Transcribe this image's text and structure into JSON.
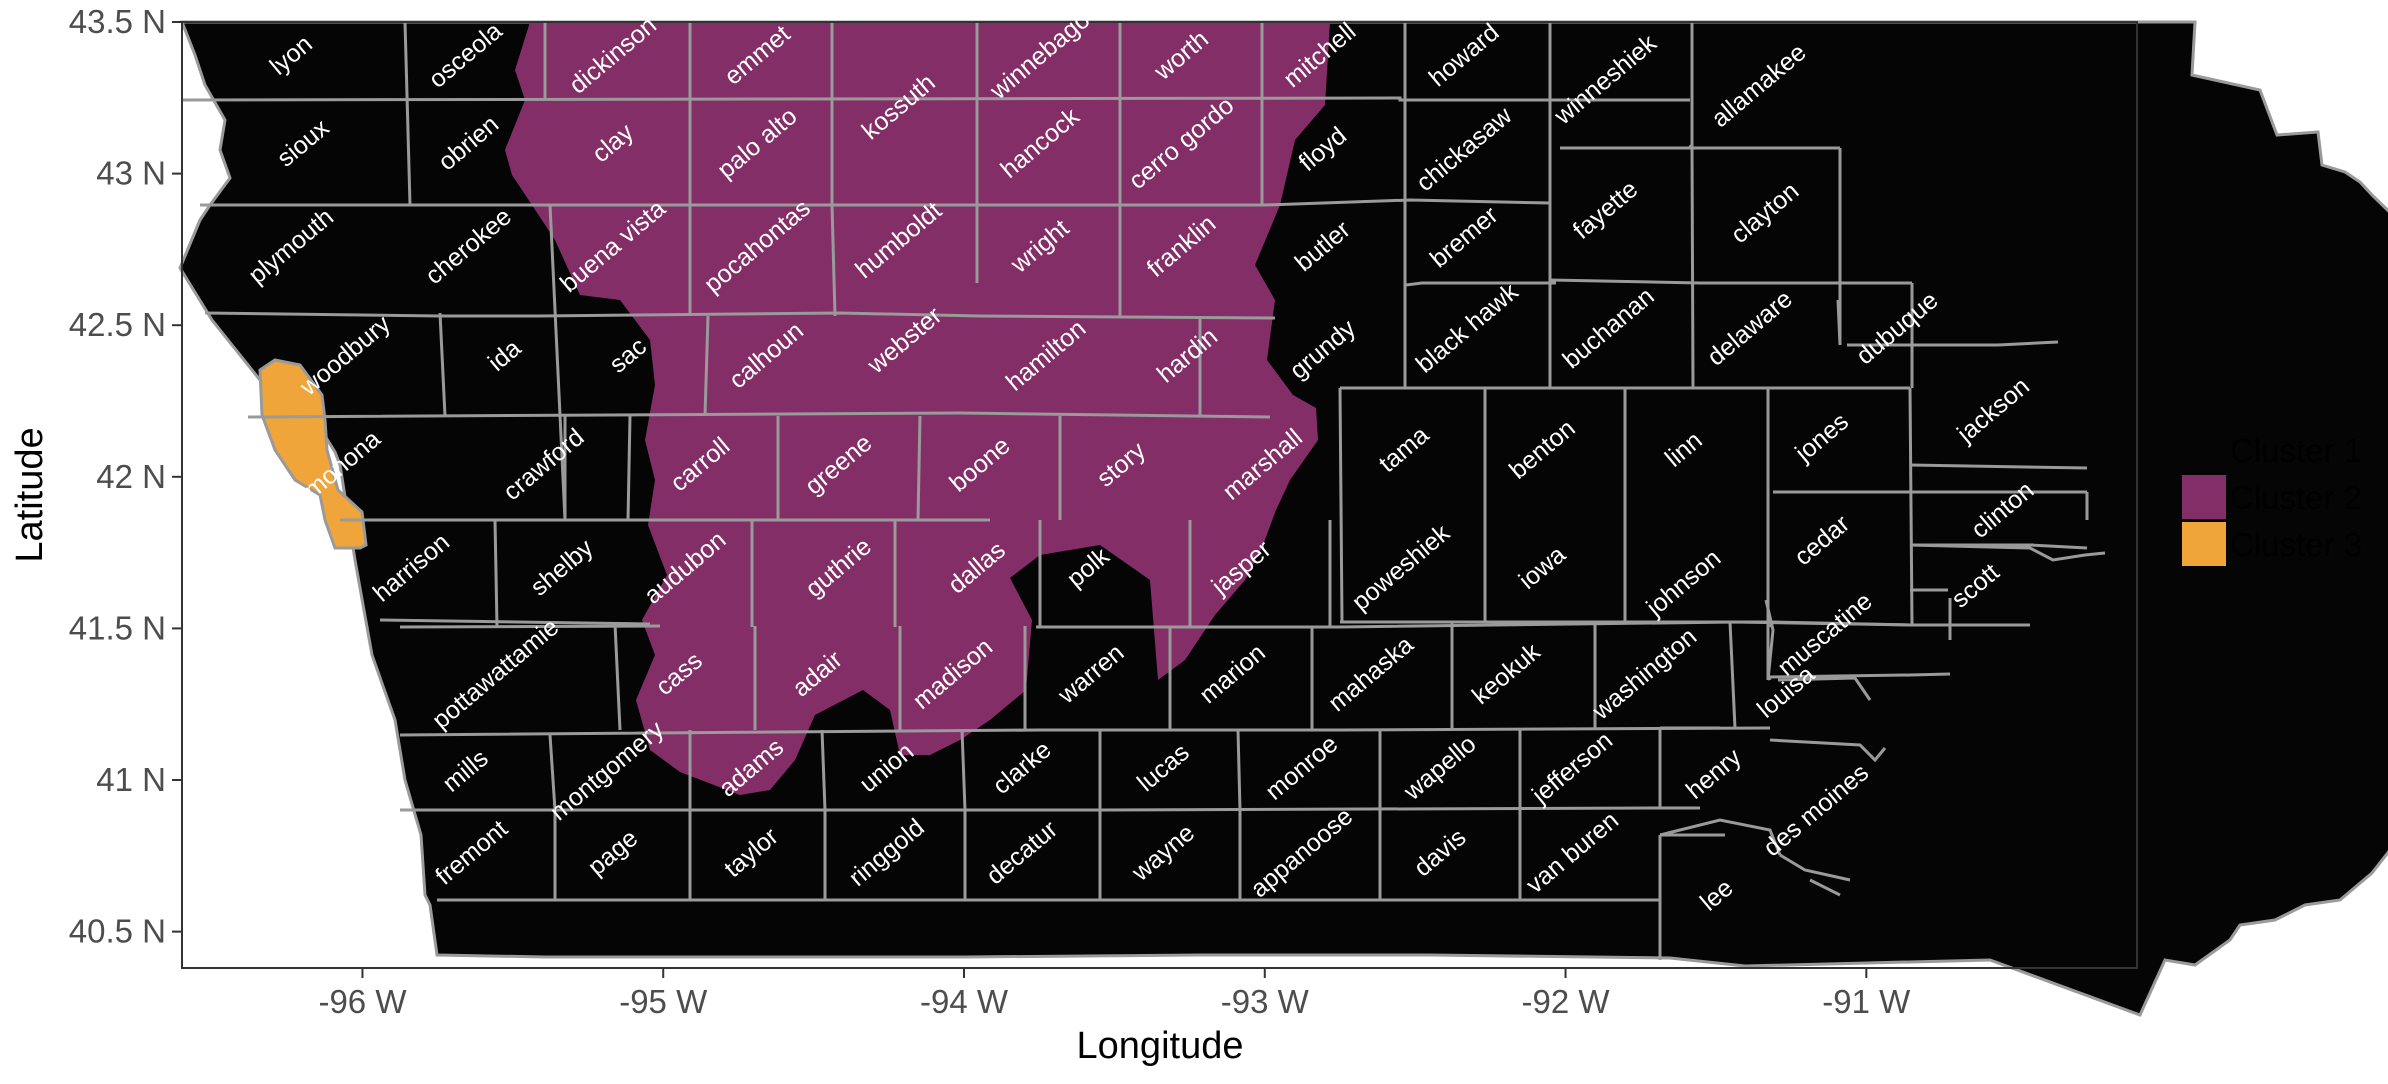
{
  "chart_data": {
    "type": "choropleth",
    "region": "Iowa counties",
    "xlabel": "Longitude",
    "ylabel": "Latitude",
    "xlim": [
      -96.6,
      -90.1
    ],
    "ylim": [
      40.38,
      43.5
    ],
    "x_ticks": [
      {
        "value": -96,
        "label": "-96 W"
      },
      {
        "value": -95,
        "label": "-95 W"
      },
      {
        "value": -94,
        "label": "-94 W"
      },
      {
        "value": -93,
        "label": "-93 W"
      },
      {
        "value": -92,
        "label": "-92 W"
      },
      {
        "value": -91,
        "label": "-91 W"
      }
    ],
    "y_ticks": [
      {
        "value": 43.5,
        "label": "43.5 N"
      },
      {
        "value": 43,
        "label": "43 N"
      },
      {
        "value": 42.5,
        "label": "42.5 N"
      },
      {
        "value": 42,
        "label": "42 N"
      },
      {
        "value": 41.5,
        "label": "41.5 N"
      },
      {
        "value": 41,
        "label": "41 N"
      },
      {
        "value": 40.5,
        "label": "40.5 N"
      }
    ],
    "grid": false,
    "legend_position": "right",
    "legend": [
      {
        "name": "Cluster 1",
        "color": "#050505"
      },
      {
        "name": "Cluster 2",
        "color": "#842e68"
      },
      {
        "name": "Cluster 3",
        "color": "#f0a53a"
      }
    ],
    "counties": [
      {
        "name": "lyon",
        "cluster": 1,
        "lon": -96.22,
        "lat": 43.37
      },
      {
        "name": "osceola",
        "cluster": 1,
        "lon": -95.64,
        "lat": 43.37
      },
      {
        "name": "dickinson",
        "cluster": 2,
        "lon": -95.15,
        "lat": 43.37
      },
      {
        "name": "emmet",
        "cluster": 2,
        "lon": -94.67,
        "lat": 43.37
      },
      {
        "name": "kossuth",
        "cluster": 2,
        "lon": -94.2,
        "lat": 43.2
      },
      {
        "name": "winnebago",
        "cluster": 2,
        "lon": -93.73,
        "lat": 43.37
      },
      {
        "name": "worth",
        "cluster": 2,
        "lon": -93.26,
        "lat": 43.37
      },
      {
        "name": "mitchell",
        "cluster": 2,
        "lon": -92.8,
        "lat": 43.37
      },
      {
        "name": "howard",
        "cluster": 1,
        "lon": -92.32,
        "lat": 43.37
      },
      {
        "name": "winneshiek",
        "cluster": 1,
        "lon": -91.85,
        "lat": 43.29
      },
      {
        "name": "allamakee",
        "cluster": 1,
        "lon": -91.34,
        "lat": 43.27
      },
      {
        "name": "sioux",
        "cluster": 1,
        "lon": -96.18,
        "lat": 43.08
      },
      {
        "name": "obrien",
        "cluster": 1,
        "lon": -95.63,
        "lat": 43.08
      },
      {
        "name": "clay",
        "cluster": 2,
        "lon": -95.15,
        "lat": 43.08
      },
      {
        "name": "palo alto",
        "cluster": 2,
        "lon": -94.67,
        "lat": 43.08
      },
      {
        "name": "hancock",
        "cluster": 2,
        "lon": -93.73,
        "lat": 43.08
      },
      {
        "name": "cerro gordo",
        "cluster": 2,
        "lon": -93.26,
        "lat": 43.08
      },
      {
        "name": "floyd",
        "cluster": 2,
        "lon": -92.79,
        "lat": 43.06
      },
      {
        "name": "chickasaw",
        "cluster": 1,
        "lon": -92.32,
        "lat": 43.06
      },
      {
        "name": "fayette",
        "cluster": 1,
        "lon": -91.85,
        "lat": 42.86
      },
      {
        "name": "clayton",
        "cluster": 1,
        "lon": -91.32,
        "lat": 42.85
      },
      {
        "name": "plymouth",
        "cluster": 1,
        "lon": -96.22,
        "lat": 42.74
      },
      {
        "name": "cherokee",
        "cluster": 1,
        "lon": -95.63,
        "lat": 42.74
      },
      {
        "name": "buena vista",
        "cluster": 2,
        "lon": -95.15,
        "lat": 42.74
      },
      {
        "name": "pocahontas",
        "cluster": 2,
        "lon": -94.67,
        "lat": 42.74
      },
      {
        "name": "humboldt",
        "cluster": 2,
        "lon": -94.2,
        "lat": 42.76
      },
      {
        "name": "wright",
        "cluster": 2,
        "lon": -93.73,
        "lat": 42.74
      },
      {
        "name": "franklin",
        "cluster": 2,
        "lon": -93.26,
        "lat": 42.74
      },
      {
        "name": "butler",
        "cluster": 1,
        "lon": -92.79,
        "lat": 42.74
      },
      {
        "name": "bremer",
        "cluster": 1,
        "lon": -92.32,
        "lat": 42.77
      },
      {
        "name": "woodbury",
        "cluster": 1,
        "lon": -96.04,
        "lat": 42.38
      },
      {
        "name": "ida",
        "cluster": 1,
        "lon": -95.51,
        "lat": 42.38
      },
      {
        "name": "sac",
        "cluster": 2,
        "lon": -95.1,
        "lat": 42.38
      },
      {
        "name": "calhoun",
        "cluster": 2,
        "lon": -94.64,
        "lat": 42.38
      },
      {
        "name": "webster",
        "cluster": 2,
        "lon": -94.18,
        "lat": 42.43
      },
      {
        "name": "hamilton",
        "cluster": 2,
        "lon": -93.71,
        "lat": 42.38
      },
      {
        "name": "hardin",
        "cluster": 2,
        "lon": -93.24,
        "lat": 42.38
      },
      {
        "name": "grundy",
        "cluster": 1,
        "lon": -92.79,
        "lat": 42.4
      },
      {
        "name": "black hawk",
        "cluster": 1,
        "lon": -92.31,
        "lat": 42.47
      },
      {
        "name": "buchanan",
        "cluster": 1,
        "lon": -91.84,
        "lat": 42.47
      },
      {
        "name": "delaware",
        "cluster": 1,
        "lon": -91.37,
        "lat": 42.47
      },
      {
        "name": "dubuque",
        "cluster": 1,
        "lon": -90.88,
        "lat": 42.47
      },
      {
        "name": "monona",
        "cluster": 3,
        "lon": -96.05,
        "lat": 42.02
      },
      {
        "name": "crawford",
        "cluster": 1,
        "lon": -95.38,
        "lat": 42.02
      },
      {
        "name": "carroll",
        "cluster": 2,
        "lon": -94.86,
        "lat": 42.02
      },
      {
        "name": "greene",
        "cluster": 2,
        "lon": -94.4,
        "lat": 42.02
      },
      {
        "name": "boone",
        "cluster": 2,
        "lon": -93.93,
        "lat": 42.02
      },
      {
        "name": "story",
        "cluster": 2,
        "lon": -93.46,
        "lat": 42.02
      },
      {
        "name": "marshall",
        "cluster": 2,
        "lon": -92.99,
        "lat": 42.02
      },
      {
        "name": "tama",
        "cluster": 1,
        "lon": -92.52,
        "lat": 42.07
      },
      {
        "name": "benton",
        "cluster": 1,
        "lon": -92.06,
        "lat": 42.07
      },
      {
        "name": "linn",
        "cluster": 1,
        "lon": -91.59,
        "lat": 42.07
      },
      {
        "name": "jones",
        "cluster": 1,
        "lon": -91.13,
        "lat": 42.11
      },
      {
        "name": "jackson",
        "cluster": 1,
        "lon": -90.56,
        "lat": 42.2
      },
      {
        "name": "harrison",
        "cluster": 1,
        "lon": -95.82,
        "lat": 41.68
      },
      {
        "name": "shelby",
        "cluster": 1,
        "lon": -95.32,
        "lat": 41.68
      },
      {
        "name": "audubon",
        "cluster": 2,
        "lon": -94.91,
        "lat": 41.68
      },
      {
        "name": "guthrie",
        "cluster": 2,
        "lon": -94.4,
        "lat": 41.68
      },
      {
        "name": "dallas",
        "cluster": 2,
        "lon": -93.94,
        "lat": 41.68
      },
      {
        "name": "polk",
        "cluster": 1,
        "lon": -93.57,
        "lat": 41.68
      },
      {
        "name": "jasper",
        "cluster": 1,
        "lon": -93.06,
        "lat": 41.68
      },
      {
        "name": "poweshiek",
        "cluster": 1,
        "lon": -92.53,
        "lat": 41.68
      },
      {
        "name": "iowa",
        "cluster": 1,
        "lon": -92.06,
        "lat": 41.68
      },
      {
        "name": "johnson",
        "cluster": 1,
        "lon": -91.59,
        "lat": 41.63
      },
      {
        "name": "cedar",
        "cluster": 1,
        "lon": -91.13,
        "lat": 41.77
      },
      {
        "name": "clinton",
        "cluster": 1,
        "lon": -90.53,
        "lat": 41.87
      },
      {
        "name": "scott",
        "cluster": 1,
        "lon": -90.62,
        "lat": 41.62
      },
      {
        "name": "pottawattamie",
        "cluster": 1,
        "lon": -95.54,
        "lat": 41.33
      },
      {
        "name": "cass",
        "cluster": 2,
        "lon": -94.93,
        "lat": 41.33
      },
      {
        "name": "adair",
        "cluster": 2,
        "lon": -94.47,
        "lat": 41.33
      },
      {
        "name": "madison",
        "cluster": 2,
        "lon": -94.02,
        "lat": 41.33
      },
      {
        "name": "warren",
        "cluster": 1,
        "lon": -93.56,
        "lat": 41.33
      },
      {
        "name": "marion",
        "cluster": 1,
        "lon": -93.09,
        "lat": 41.33
      },
      {
        "name": "mahaska",
        "cluster": 1,
        "lon": -92.63,
        "lat": 41.33
      },
      {
        "name": "keokuk",
        "cluster": 1,
        "lon": -92.18,
        "lat": 41.33
      },
      {
        "name": "washington",
        "cluster": 1,
        "lon": -91.72,
        "lat": 41.33
      },
      {
        "name": "muscatine",
        "cluster": 1,
        "lon": -91.12,
        "lat": 41.46
      },
      {
        "name": "louisa",
        "cluster": 1,
        "lon": -91.25,
        "lat": 41.27
      },
      {
        "name": "mills",
        "cluster": 1,
        "lon": -95.64,
        "lat": 41.01
      },
      {
        "name": "montgomery",
        "cluster": 1,
        "lon": -95.17,
        "lat": 41.01
      },
      {
        "name": "adams",
        "cluster": 2,
        "lon": -94.69,
        "lat": 41.02
      },
      {
        "name": "union",
        "cluster": 1,
        "lon": -94.24,
        "lat": 41.02
      },
      {
        "name": "clarke",
        "cluster": 1,
        "lon": -93.79,
        "lat": 41.02
      },
      {
        "name": "lucas",
        "cluster": 1,
        "lon": -93.32,
        "lat": 41.02
      },
      {
        "name": "monroe",
        "cluster": 1,
        "lon": -92.86,
        "lat": 41.02
      },
      {
        "name": "wapello",
        "cluster": 1,
        "lon": -92.4,
        "lat": 41.02
      },
      {
        "name": "jefferson",
        "cluster": 1,
        "lon": -91.96,
        "lat": 41.02
      },
      {
        "name": "henry",
        "cluster": 1,
        "lon": -91.49,
        "lat": 41.0
      },
      {
        "name": "des moines",
        "cluster": 1,
        "lon": -91.15,
        "lat": 40.88
      },
      {
        "name": "fremont",
        "cluster": 1,
        "lon": -95.62,
        "lat": 40.74
      },
      {
        "name": "page",
        "cluster": 1,
        "lon": -95.15,
        "lat": 40.74
      },
      {
        "name": "taylor",
        "cluster": 1,
        "lon": -94.69,
        "lat": 40.74
      },
      {
        "name": "ringgold",
        "cluster": 1,
        "lon": -94.24,
        "lat": 40.74
      },
      {
        "name": "decatur",
        "cluster": 1,
        "lon": -93.79,
        "lat": 40.74
      },
      {
        "name": "wayne",
        "cluster": 1,
        "lon": -93.32,
        "lat": 40.74
      },
      {
        "name": "appanoose",
        "cluster": 1,
        "lon": -92.86,
        "lat": 40.74
      },
      {
        "name": "davis",
        "cluster": 1,
        "lon": -92.4,
        "lat": 40.74
      },
      {
        "name": "van buren",
        "cluster": 1,
        "lon": -91.96,
        "lat": 40.74
      },
      {
        "name": "lee",
        "cluster": 1,
        "lon": -91.48,
        "lat": 40.6
      }
    ]
  }
}
